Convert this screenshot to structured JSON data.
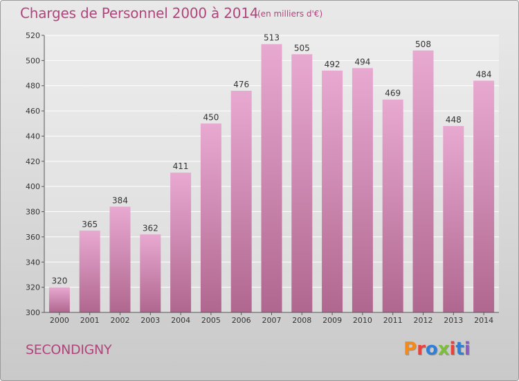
{
  "header": {
    "title": "Charges de Personnel 2000 à 2014",
    "subtitle": "(en milliers d'€)"
  },
  "footer": {
    "town": "SECONDIGNY",
    "logo_letters": [
      "P",
      "r",
      "o",
      "x",
      "i",
      "t",
      "i"
    ]
  },
  "colors": {
    "title": "#b0457c",
    "bar_top": "#e8a9d1",
    "bar_bottom": "#b0678f",
    "logo": [
      "#f28a1c",
      "#e8423a",
      "#2f7fd6",
      "#7dbf3a",
      "#e8423a",
      "#2f7fd6",
      "#8a5cc2"
    ]
  },
  "chart_data": {
    "type": "bar",
    "title": "Charges de Personnel 2000 à 2014",
    "subtitle": "(en milliers d'€)",
    "categories": [
      "2000",
      "2001",
      "2002",
      "2003",
      "2004",
      "2005",
      "2006",
      "2007",
      "2008",
      "2009",
      "2010",
      "2011",
      "2012",
      "2013",
      "2014"
    ],
    "values": [
      320,
      365,
      384,
      362,
      411,
      450,
      476,
      513,
      505,
      492,
      494,
      469,
      508,
      448,
      484
    ],
    "ylim": [
      300,
      520
    ],
    "yticks": [
      300,
      320,
      340,
      360,
      380,
      400,
      420,
      440,
      460,
      480,
      500,
      520
    ],
    "grid": true,
    "legend": "none"
  }
}
